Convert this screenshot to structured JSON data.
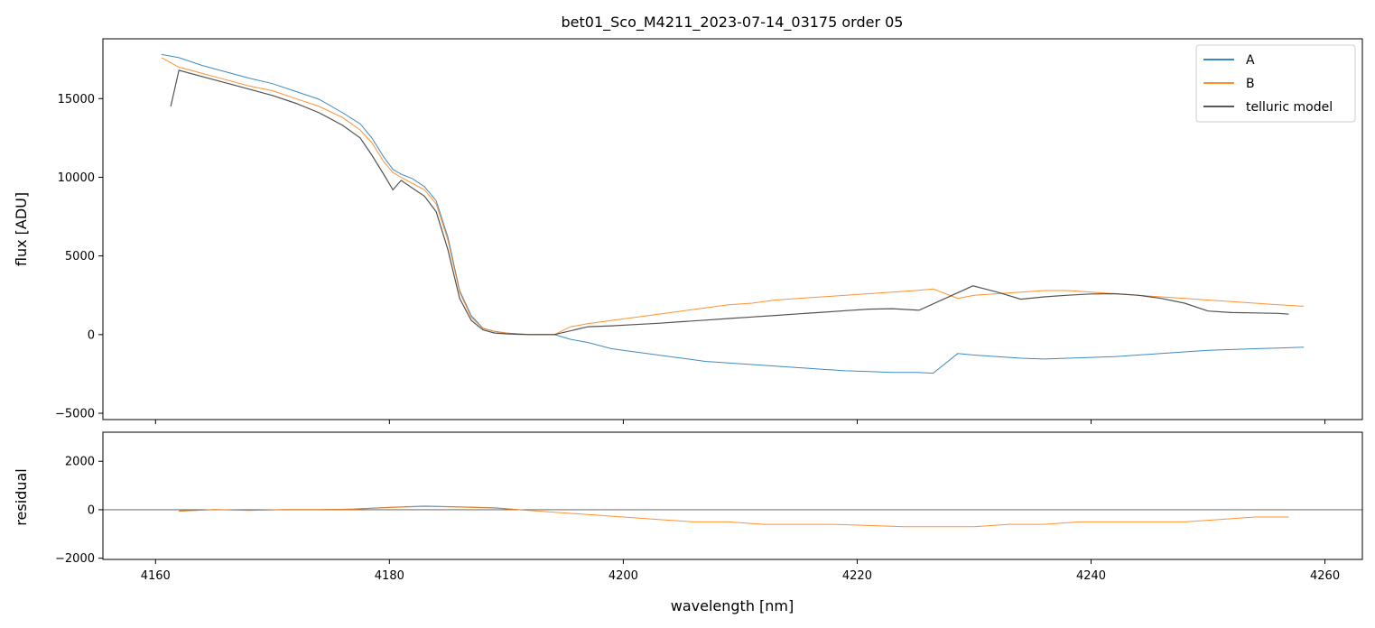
{
  "chart_data": [
    {
      "type": "line",
      "title": "bet01_Sco_M4211_2023-07-14_03175  order 05",
      "xlabel": "",
      "ylabel": "flux [ADU]",
      "xlim": [
        4155.5,
        4263.2
      ],
      "ylim": [
        -5400,
        18800
      ],
      "xticks": [
        4160,
        4180,
        4200,
        4220,
        4240,
        4260
      ],
      "yticks": [
        -5000,
        0,
        5000,
        10000,
        15000
      ],
      "ytick_labels": [
        "−5000",
        "0",
        "5000",
        "10000",
        "15000"
      ],
      "legend_position": "top-right",
      "series": [
        {
          "name": "A",
          "color": "#1f77b4",
          "x": [
            4160.5,
            4162,
            4164,
            4166,
            4168,
            4170,
            4172,
            4174,
            4176,
            4177.5,
            4178.5,
            4179.5,
            4180.3,
            4181,
            4182,
            4183,
            4184,
            4185,
            4186,
            4187,
            4188,
            4189,
            4190,
            4191,
            4192,
            4193,
            4194.1,
            4195.5,
            4197,
            4199,
            4201,
            4203,
            4205,
            4207,
            4209,
            4211,
            4213,
            4215,
            4217,
            4219,
            4221,
            4223,
            4225,
            4226.5,
            4228.6,
            4230,
            4232,
            4234,
            4236,
            4238,
            4240,
            4242,
            4244,
            4246,
            4248,
            4250,
            4252,
            4254,
            4256,
            4258.2
          ],
          "y": [
            17800,
            17600,
            17100,
            16700,
            16300,
            15950,
            15450,
            14950,
            14100,
            13400,
            12500,
            11300,
            10500,
            10200,
            9900,
            9400,
            8500,
            6200,
            2800,
            1200,
            400,
            200,
            100,
            50,
            0,
            0,
            0,
            -300,
            -500,
            -900,
            -1100,
            -1300,
            -1500,
            -1700,
            -1800,
            -1900,
            -2000,
            -2100,
            -2200,
            -2300,
            -2350,
            -2400,
            -2400,
            -2450,
            -1200,
            -1300,
            -1400,
            -1500,
            -1550,
            -1500,
            -1450,
            -1400,
            -1300,
            -1200,
            -1100,
            -1000,
            -950,
            -900,
            -850,
            -800
          ]
        },
        {
          "name": "B",
          "color": "#ff7f0e",
          "x": [
            4160.5,
            4162,
            4164,
            4166,
            4168,
            4170,
            4172,
            4174,
            4176,
            4177.5,
            4178.5,
            4179.5,
            4180.3,
            4181,
            4182,
            4183,
            4184,
            4185,
            4186,
            4187,
            4188,
            4189,
            4190,
            4191,
            4192,
            4193,
            4194.1,
            4195.5,
            4197,
            4199,
            4201,
            4203,
            4205,
            4207,
            4209,
            4211,
            4213,
            4215,
            4217,
            4219,
            4221,
            4223,
            4225,
            4226.5,
            4228.6,
            4230,
            4232,
            4234,
            4236,
            4238,
            4240,
            4242,
            4244,
            4246,
            4248,
            4250,
            4252,
            4254,
            4256,
            4258.2
          ],
          "y": [
            17600,
            17000,
            16600,
            16200,
            15800,
            15500,
            15000,
            14500,
            13800,
            13000,
            12200,
            11000,
            10300,
            10000,
            9600,
            9200,
            8300,
            6000,
            2700,
            1100,
            400,
            200,
            100,
            50,
            0,
            0,
            0,
            500,
            700,
            900,
            1100,
            1300,
            1500,
            1700,
            1900,
            2000,
            2200,
            2300,
            2400,
            2500,
            2600,
            2700,
            2800,
            2900,
            2300,
            2500,
            2600,
            2700,
            2800,
            2800,
            2700,
            2600,
            2500,
            2400,
            2300,
            2200,
            2100,
            2000,
            1900,
            1800
          ]
        },
        {
          "name": "telluric model",
          "color": "#404040",
          "x": [
            4161.3,
            4162,
            4164,
            4166,
            4168,
            4170,
            4172,
            4174,
            4176,
            4177.5,
            4178.5,
            4179.5,
            4180.3,
            4181,
            4182,
            4183,
            4184,
            4185,
            4186,
            4187,
            4188,
            4189,
            4190,
            4191,
            4192,
            4193,
            4194.1,
            4197,
            4199,
            4201,
            4203,
            4205,
            4207,
            4209,
            4211,
            4213,
            4215,
            4217,
            4219,
            4221,
            4223,
            4225.3,
            4229.9,
            4232,
            4234,
            4236,
            4238,
            4240,
            4242,
            4244,
            4246,
            4248,
            4250,
            4252,
            4254,
            4256,
            4256.9
          ],
          "y": [
            14500,
            16800,
            16400,
            16000,
            15600,
            15200,
            14700,
            14100,
            13300,
            12500,
            11400,
            10200,
            9200,
            9800,
            9300,
            8800,
            7800,
            5400,
            2300,
            900,
            300,
            100,
            50,
            20,
            0,
            0,
            0,
            500,
            560,
            640,
            720,
            820,
            920,
            1020,
            1120,
            1220,
            1320,
            1420,
            1520,
            1620,
            1650,
            1550,
            3100,
            2700,
            2250,
            2400,
            2500,
            2580,
            2600,
            2500,
            2300,
            2000,
            1500,
            1400,
            1380,
            1350,
            1300
          ]
        }
      ]
    },
    {
      "type": "line",
      "title": "",
      "xlabel": "wavelength [nm]",
      "ylabel": "residual",
      "xlim": [
        4155.5,
        4263.2
      ],
      "ylim": [
        -2050,
        3200
      ],
      "xticks": [
        4160,
        4180,
        4200,
        4220,
        4240,
        4260
      ],
      "xtick_labels": [
        "4160",
        "4180",
        "4200",
        "4220",
        "4240",
        "4260"
      ],
      "yticks": [
        -2000,
        0,
        2000
      ],
      "ytick_labels": [
        "−2000",
        "0",
        "2000"
      ],
      "series": [
        {
          "name": "A",
          "color": "#1f77b4",
          "x": [
            4162,
            4165,
            4168,
            4171,
            4174,
            4177,
            4180,
            4183,
            4186,
            4189,
            4191
          ],
          "y": [
            -50,
            0,
            -20,
            0,
            0,
            30,
            100,
            150,
            120,
            80,
            0
          ]
        },
        {
          "name": "B",
          "color": "#ff7f0e",
          "x": [
            4162,
            4165,
            4168,
            4171,
            4174,
            4177,
            4180,
            4183,
            4186,
            4189,
            4191,
            4197,
            4200,
            4203,
            4206,
            4209,
            4212,
            4215,
            4218,
            4221,
            4224,
            4225.3,
            4230,
            4233,
            4236,
            4239,
            4242,
            4245,
            4248,
            4251,
            4254,
            4256.9
          ],
          "y": [
            -60,
            10,
            -30,
            10,
            10,
            20,
            90,
            140,
            110,
            70,
            0,
            -200,
            -300,
            -400,
            -500,
            -500,
            -600,
            -600,
            -600,
            -650,
            -700,
            -700,
            -700,
            -600,
            -600,
            -500,
            -500,
            -500,
            -500,
            -400,
            -300,
            -300
          ]
        }
      ]
    }
  ]
}
